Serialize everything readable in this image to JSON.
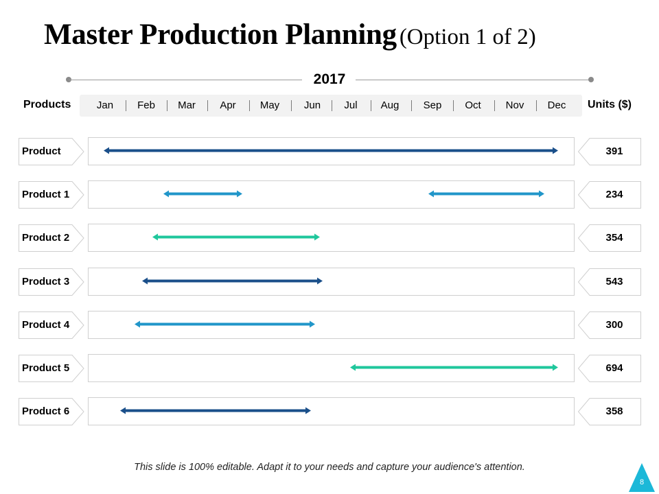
{
  "slide": {
    "title_main": "Master Production Planning",
    "title_sub": "(Option 1 of 2)",
    "year": "2017",
    "products_header": "Products",
    "units_header": "Units ($)",
    "footer": "This slide is 100% editable. Adapt it to your needs and capture your audience's attention.",
    "page_number": "8"
  },
  "months": [
    "Jan",
    "Feb",
    "Mar",
    "Apr",
    "May",
    "Jun",
    "Jul",
    "Aug",
    "Sep",
    "Oct",
    "Nov",
    "Dec"
  ],
  "colors": {
    "dark_blue": "#1a4f8a",
    "light_blue": "#2196c9",
    "teal": "#1fc79c",
    "badge": "#1cb8d8"
  },
  "rows": [
    {
      "label": "Product",
      "units": "391",
      "bars": [
        {
          "start": "Jan",
          "end": "Dec",
          "color": "dark_blue"
        }
      ]
    },
    {
      "label": "Product 1",
      "units": "234",
      "bars": [
        {
          "start": "Feb",
          "end": "Apr",
          "color": "light_blue"
        },
        {
          "start": "Sep",
          "end": "Dec",
          "color": "light_blue"
        }
      ]
    },
    {
      "label": "Product 2",
      "units": "354",
      "bars": [
        {
          "start": "Feb",
          "end": "Jun",
          "color": "teal"
        }
      ]
    },
    {
      "label": "Product 3",
      "units": "543",
      "bars": [
        {
          "start": "Feb",
          "end": "Jun",
          "color": "dark_blue"
        }
      ]
    },
    {
      "label": "Product 4",
      "units": "300",
      "bars": [
        {
          "start": "Feb",
          "end": "Jun",
          "color": "light_blue"
        }
      ]
    },
    {
      "label": "Product 5",
      "units": "694",
      "bars": [
        {
          "start": "Jul",
          "end": "Dec",
          "color": "teal"
        }
      ]
    },
    {
      "label": "Product 6",
      "units": "358",
      "bars": [
        {
          "start": "Jan",
          "end": "Jun",
          "color": "dark_blue"
        }
      ]
    }
  ]
}
